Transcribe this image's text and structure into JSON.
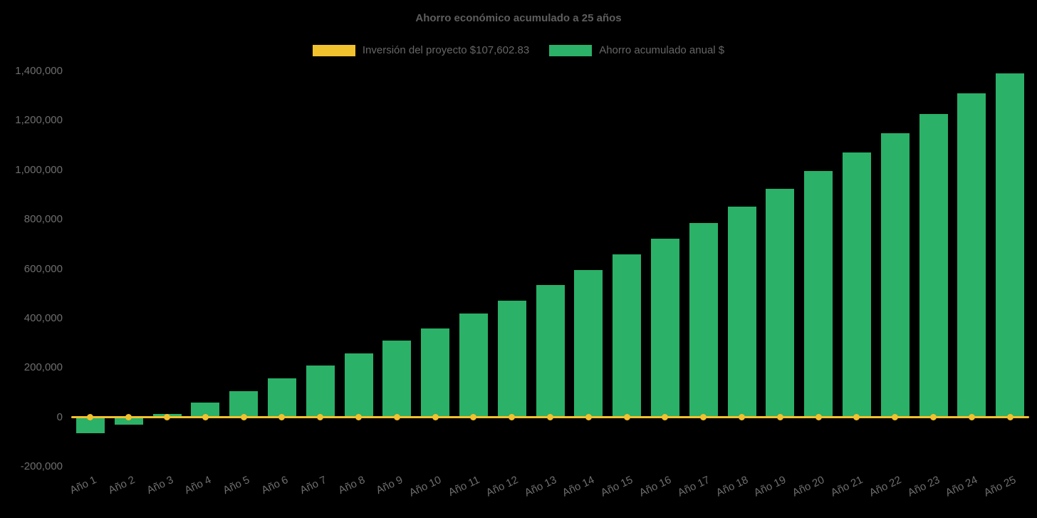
{
  "chart_data": {
    "type": "bar",
    "title": "Ahorro económico acumulado a 25 años",
    "categories": [
      "Año 1",
      "Año 2",
      "Año 3",
      "Año 4",
      "Año 5",
      "Año 6",
      "Año 7",
      "Año 8",
      "Año 9",
      "Año 10",
      "Año 11",
      "Año 12",
      "Año 13",
      "Año 14",
      "Año 15",
      "Año 16",
      "Año 17",
      "Año 18",
      "Año 19",
      "Año 20",
      "Año 21",
      "Año 22",
      "Año 23",
      "Año 24",
      "Año 25"
    ],
    "series": [
      {
        "name": "Inversión del proyecto $107,602.83",
        "type": "line",
        "color": "#f2c12e",
        "investment_amount": 107602.83,
        "values": [
          0,
          0,
          0,
          0,
          0,
          0,
          0,
          0,
          0,
          0,
          0,
          0,
          0,
          0,
          0,
          0,
          0,
          0,
          0,
          0,
          0,
          0,
          0,
          0,
          0
        ]
      },
      {
        "name": "Ahorro acumulado anual $",
        "type": "bar",
        "color": "#2bb168",
        "values": [
          -65000,
          -30000,
          12000,
          60000,
          105000,
          157000,
          208000,
          258000,
          310000,
          360000,
          420000,
          472000,
          535000,
          595000,
          658000,
          722000,
          786000,
          853000,
          924000,
          996000,
          1072000,
          1148000,
          1228000,
          1310000,
          1390000
        ]
      }
    ],
    "ylim": [
      -200000,
      1400000
    ],
    "ytick_step": 200000,
    "ytick_labels": [
      "-200,000",
      "0",
      "200,000",
      "400,000",
      "600,000",
      "800,000",
      "1,000,000",
      "1,200,000",
      "1,400,000"
    ],
    "grid": false,
    "legend_position": "top",
    "background_color": "#000000",
    "text_color": "#666666"
  }
}
